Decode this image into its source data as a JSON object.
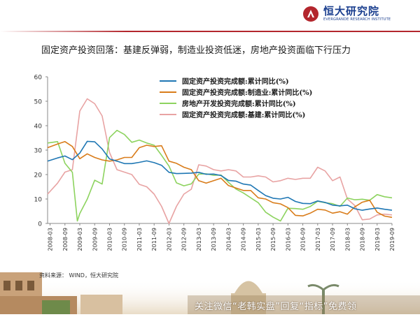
{
  "header": {
    "logo_cn": "恒大研究院",
    "logo_en": "EVERGRANDE RESEARCH INSTITUTE"
  },
  "title": "固定资产投资回落：基建反弹弱，制造业投资低迷，房地产投资面临下行压力",
  "source": "资料来源：  WIND，恒大研究院",
  "footer_banner": "关注微信“老韩实盘”回复“指标”免费领",
  "colors": {
    "fai": "#1f77b4",
    "manufacturing": "#d97c1a",
    "realestate": "#8dd35f",
    "infrastructure": "#e8a3a3",
    "logo": "#1b3f8f",
    "accent": "#b3262d"
  },
  "chart_data": {
    "type": "line",
    "title": "",
    "xlabel": "",
    "ylabel": "",
    "ylim": [
      0,
      60
    ],
    "yticks": [
      0,
      10,
      20,
      30,
      40,
      50,
      60
    ],
    "xlim": [
      "2008-02",
      "2019-09"
    ],
    "xticks": [
      "2008-03",
      "2008-09",
      "2009-03",
      "2009-09",
      "2010-03",
      "2010-09",
      "2011-03",
      "2011-09",
      "2012-03",
      "2012-09",
      "2013-03",
      "2013-09",
      "2014-03",
      "2014-09",
      "2015-03",
      "2015-09",
      "2016-03",
      "2016-09",
      "2017-03",
      "2017-09",
      "2018-03",
      "2018-09",
      "2019-03",
      "2019-09"
    ],
    "grid": false,
    "legend": "top-right",
    "series": [
      {
        "name": "固定资产投资完成额:累计同比(%)",
        "color": "#1f77b4",
        "points": [
          [
            "2008-02",
            25.5
          ],
          [
            "2008-06",
            26.8
          ],
          [
            "2008-09",
            27.6
          ],
          [
            "2008-12",
            26.1
          ],
          [
            "2009-03",
            28.8
          ],
          [
            "2009-06",
            33.6
          ],
          [
            "2009-09",
            33.4
          ],
          [
            "2009-12",
            30.5
          ],
          [
            "2010-03",
            26.4
          ],
          [
            "2010-06",
            25.5
          ],
          [
            "2010-09",
            24.5
          ],
          [
            "2010-12",
            24.5
          ],
          [
            "2011-03",
            25.0
          ],
          [
            "2011-06",
            25.6
          ],
          [
            "2011-09",
            24.9
          ],
          [
            "2011-12",
            23.8
          ],
          [
            "2012-03",
            20.9
          ],
          [
            "2012-06",
            20.4
          ],
          [
            "2012-09",
            20.5
          ],
          [
            "2012-12",
            20.6
          ],
          [
            "2013-03",
            20.9
          ],
          [
            "2013-06",
            20.1
          ],
          [
            "2013-09",
            20.2
          ],
          [
            "2013-12",
            19.6
          ],
          [
            "2014-03",
            17.6
          ],
          [
            "2014-06",
            17.3
          ],
          [
            "2014-09",
            16.1
          ],
          [
            "2014-12",
            15.7
          ],
          [
            "2015-03",
            13.5
          ],
          [
            "2015-06",
            11.4
          ],
          [
            "2015-09",
            10.3
          ],
          [
            "2015-12",
            10.0
          ],
          [
            "2016-03",
            10.7
          ],
          [
            "2016-06",
            9.0
          ],
          [
            "2016-09",
            8.2
          ],
          [
            "2016-12",
            8.1
          ],
          [
            "2017-03",
            9.2
          ],
          [
            "2017-06",
            8.6
          ],
          [
            "2017-09",
            7.5
          ],
          [
            "2017-12",
            7.2
          ],
          [
            "2018-03",
            7.5
          ],
          [
            "2018-06",
            6.0
          ],
          [
            "2018-09",
            5.4
          ],
          [
            "2018-12",
            5.9
          ],
          [
            "2019-03",
            6.3
          ],
          [
            "2019-06",
            5.8
          ],
          [
            "2019-09",
            5.4
          ]
        ]
      },
      {
        "name": "固定资产投资完成额:制造业:累计同比(%)",
        "color": "#d97c1a",
        "points": [
          [
            "2008-02",
            31.0
          ],
          [
            "2008-06",
            32.5
          ],
          [
            "2008-09",
            33.5
          ],
          [
            "2008-12",
            31.5
          ],
          [
            "2009-03",
            26.5
          ],
          [
            "2009-06",
            28.5
          ],
          [
            "2009-09",
            27.0
          ],
          [
            "2009-12",
            26.0
          ],
          [
            "2010-03",
            25.5
          ],
          [
            "2010-06",
            26.0
          ],
          [
            "2010-09",
            27.0
          ],
          [
            "2010-12",
            27.0
          ],
          [
            "2011-03",
            31.0
          ],
          [
            "2011-06",
            32.0
          ],
          [
            "2011-09",
            31.5
          ],
          [
            "2011-12",
            31.8
          ],
          [
            "2012-03",
            25.5
          ],
          [
            "2012-06",
            24.6
          ],
          [
            "2012-09",
            23.0
          ],
          [
            "2012-12",
            22.0
          ],
          [
            "2013-03",
            17.5
          ],
          [
            "2013-06",
            16.5
          ],
          [
            "2013-09",
            17.5
          ],
          [
            "2013-12",
            18.5
          ],
          [
            "2014-03",
            15.5
          ],
          [
            "2014-06",
            14.5
          ],
          [
            "2014-09",
            13.5
          ],
          [
            "2014-12",
            13.5
          ],
          [
            "2015-03",
            10.5
          ],
          [
            "2015-06",
            10.0
          ],
          [
            "2015-09",
            8.5
          ],
          [
            "2015-12",
            8.0
          ],
          [
            "2016-03",
            6.5
          ],
          [
            "2016-06",
            3.3
          ],
          [
            "2016-09",
            3.1
          ],
          [
            "2016-12",
            4.2
          ],
          [
            "2017-03",
            5.8
          ],
          [
            "2017-06",
            5.5
          ],
          [
            "2017-09",
            4.2
          ],
          [
            "2017-12",
            4.8
          ],
          [
            "2018-03",
            3.8
          ],
          [
            "2018-06",
            6.8
          ],
          [
            "2018-09",
            8.7
          ],
          [
            "2018-12",
            9.5
          ],
          [
            "2019-03",
            4.6
          ],
          [
            "2019-06",
            3.0
          ],
          [
            "2019-09",
            2.5
          ]
        ]
      },
      {
        "name": "房地产开发投资完成额:累计同比(%)",
        "color": "#8dd35f",
        "points": [
          [
            "2008-02",
            32.9
          ],
          [
            "2008-06",
            33.5
          ],
          [
            "2008-09",
            24.6
          ],
          [
            "2008-12",
            20.9
          ],
          [
            "2009-02",
            1.0
          ],
          [
            "2009-03",
            4.1
          ],
          [
            "2009-06",
            9.9
          ],
          [
            "2009-09",
            17.7
          ],
          [
            "2009-12",
            16.1
          ],
          [
            "2010-03",
            35.1
          ],
          [
            "2010-06",
            38.1
          ],
          [
            "2010-09",
            36.4
          ],
          [
            "2010-12",
            33.2
          ],
          [
            "2011-03",
            34.1
          ],
          [
            "2011-06",
            32.9
          ],
          [
            "2011-09",
            32.0
          ],
          [
            "2011-12",
            27.9
          ],
          [
            "2012-03",
            23.5
          ],
          [
            "2012-06",
            16.6
          ],
          [
            "2012-09",
            15.4
          ],
          [
            "2012-12",
            16.2
          ],
          [
            "2013-03",
            20.2
          ],
          [
            "2013-06",
            20.3
          ],
          [
            "2013-09",
            19.7
          ],
          [
            "2013-12",
            19.8
          ],
          [
            "2014-03",
            16.8
          ],
          [
            "2014-06",
            14.1
          ],
          [
            "2014-09",
            12.5
          ],
          [
            "2014-12",
            10.5
          ],
          [
            "2015-03",
            8.5
          ],
          [
            "2015-06",
            4.6
          ],
          [
            "2015-09",
            2.6
          ],
          [
            "2015-12",
            1.0
          ],
          [
            "2016-03",
            6.2
          ],
          [
            "2016-06",
            6.1
          ],
          [
            "2016-09",
            5.8
          ],
          [
            "2016-12",
            6.9
          ],
          [
            "2017-03",
            9.1
          ],
          [
            "2017-06",
            8.5
          ],
          [
            "2017-09",
            8.1
          ],
          [
            "2017-12",
            7.0
          ],
          [
            "2018-03",
            10.4
          ],
          [
            "2018-06",
            9.7
          ],
          [
            "2018-09",
            9.9
          ],
          [
            "2018-12",
            9.5
          ],
          [
            "2019-03",
            11.8
          ],
          [
            "2019-06",
            10.9
          ],
          [
            "2019-09",
            10.5
          ]
        ]
      },
      {
        "name": "固定资产投资完成额:基建:累计同比(%)",
        "color": "#e8a3a3",
        "points": [
          [
            "2008-02",
            12.0
          ],
          [
            "2008-06",
            16.5
          ],
          [
            "2008-09",
            21.0
          ],
          [
            "2008-12",
            22.0
          ],
          [
            "2009-03",
            46.0
          ],
          [
            "2009-06",
            51.0
          ],
          [
            "2009-09",
            49.0
          ],
          [
            "2009-12",
            44.0
          ],
          [
            "2010-03",
            29.0
          ],
          [
            "2010-06",
            22.0
          ],
          [
            "2010-09",
            21.0
          ],
          [
            "2010-12",
            20.0
          ],
          [
            "2011-03",
            16.0
          ],
          [
            "2011-06",
            15.0
          ],
          [
            "2011-09",
            12.0
          ],
          [
            "2011-12",
            7.0
          ],
          [
            "2012-03",
            0.0
          ],
          [
            "2012-06",
            7.0
          ],
          [
            "2012-09",
            12.0
          ],
          [
            "2012-12",
            14.0
          ],
          [
            "2013-03",
            24.0
          ],
          [
            "2013-06",
            23.5
          ],
          [
            "2013-09",
            22.0
          ],
          [
            "2013-12",
            21.5
          ],
          [
            "2014-03",
            22.0
          ],
          [
            "2014-06",
            21.5
          ],
          [
            "2014-09",
            19.0
          ],
          [
            "2014-12",
            19.0
          ],
          [
            "2015-03",
            19.5
          ],
          [
            "2015-06",
            19.0
          ],
          [
            "2015-09",
            17.0
          ],
          [
            "2015-12",
            17.5
          ],
          [
            "2016-03",
            18.5
          ],
          [
            "2016-06",
            18.0
          ],
          [
            "2016-09",
            18.5
          ],
          [
            "2016-12",
            18.5
          ],
          [
            "2017-03",
            23.0
          ],
          [
            "2017-06",
            21.5
          ],
          [
            "2017-09",
            17.5
          ],
          [
            "2017-12",
            19.0
          ],
          [
            "2018-03",
            10.0
          ],
          [
            "2018-06",
            7.3
          ],
          [
            "2018-09",
            1.5
          ],
          [
            "2018-12",
            1.8
          ],
          [
            "2019-03",
            3.5
          ],
          [
            "2019-06",
            3.8
          ],
          [
            "2019-09",
            3.5
          ]
        ]
      }
    ]
  }
}
